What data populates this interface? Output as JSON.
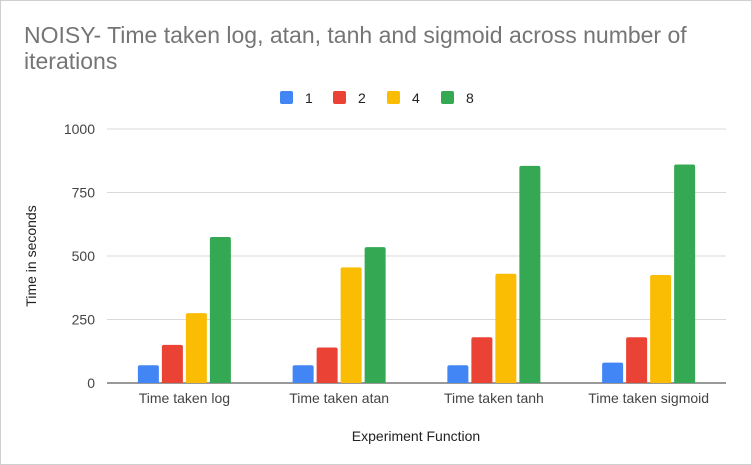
{
  "chart_data": {
    "type": "bar",
    "title": "NOISY- Time taken log, atan, tanh and sigmoid across number of iterations",
    "xlabel": "Experiment Function",
    "ylabel": "Time in seconds",
    "categories": [
      "Time taken log",
      "Time taken atan",
      "Time taken tanh",
      "Time taken sigmoid"
    ],
    "series": [
      {
        "name": "1",
        "color": "#4285f4",
        "values": [
          70,
          70,
          70,
          80
        ]
      },
      {
        "name": "2",
        "color": "#ea4335",
        "values": [
          150,
          140,
          180,
          180
        ]
      },
      {
        "name": "4",
        "color": "#fbbc04",
        "values": [
          275,
          455,
          430,
          425
        ]
      },
      {
        "name": "8",
        "color": "#34a853",
        "values": [
          575,
          535,
          855,
          860
        ]
      }
    ],
    "ylim": [
      0,
      1000
    ],
    "yticks": [
      "0",
      "250",
      "500",
      "750",
      "1000"
    ],
    "grid": true,
    "legend_position": "top"
  }
}
